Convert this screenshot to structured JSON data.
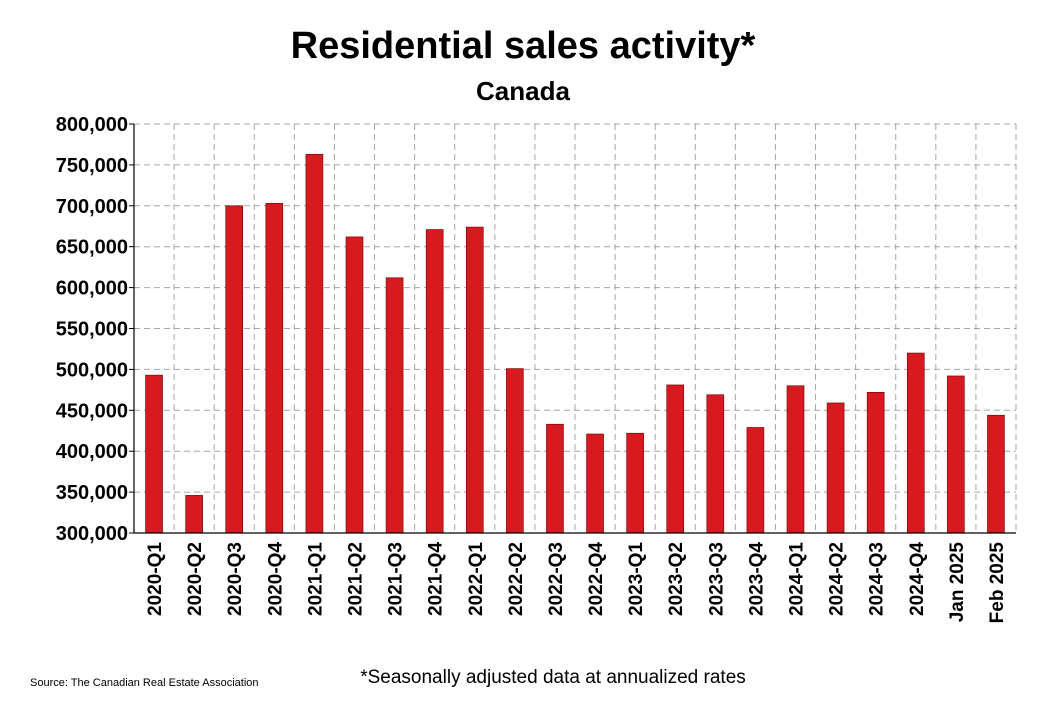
{
  "chart_data": {
    "type": "bar",
    "title": "Residential sales activity*",
    "subtitle": "Canada",
    "categories": [
      "2020-Q1",
      "2020-Q2",
      "2020-Q3",
      "2020-Q4",
      "2021-Q1",
      "2021-Q2",
      "2021-Q3",
      "2021-Q4",
      "2022-Q1",
      "2022-Q2",
      "2022-Q3",
      "2022-Q4",
      "2023-Q1",
      "2023-Q2",
      "2023-Q3",
      "2023-Q4",
      "2024-Q1",
      "2024-Q2",
      "2024-Q3",
      "2024-Q4",
      "Jan 2025",
      "Feb 2025"
    ],
    "values": [
      493000,
      346000,
      700000,
      703000,
      763000,
      662000,
      612000,
      671000,
      674000,
      501000,
      433000,
      421000,
      422000,
      481000,
      469000,
      429000,
      480000,
      459000,
      472000,
      520000,
      492000,
      444000
    ],
    "ylim": [
      300000,
      800000
    ],
    "yticks": [
      300000,
      350000,
      400000,
      450000,
      500000,
      550000,
      600000,
      650000,
      700000,
      750000,
      800000
    ],
    "ytick_labels": [
      "300,000",
      "350,000",
      "400,000",
      "450,000",
      "500,000",
      "550,000",
      "600,000",
      "650,000",
      "700,000",
      "750,000",
      "800,000"
    ],
    "xlabel": "",
    "ylabel": "",
    "grid": true,
    "bar_color": "#d71920",
    "grid_color": "#a6a6a6"
  },
  "footer": {
    "source": "Source: The Canadian Real Estate Association",
    "footnote": "*Seasonally adjusted data at annualized rates"
  }
}
